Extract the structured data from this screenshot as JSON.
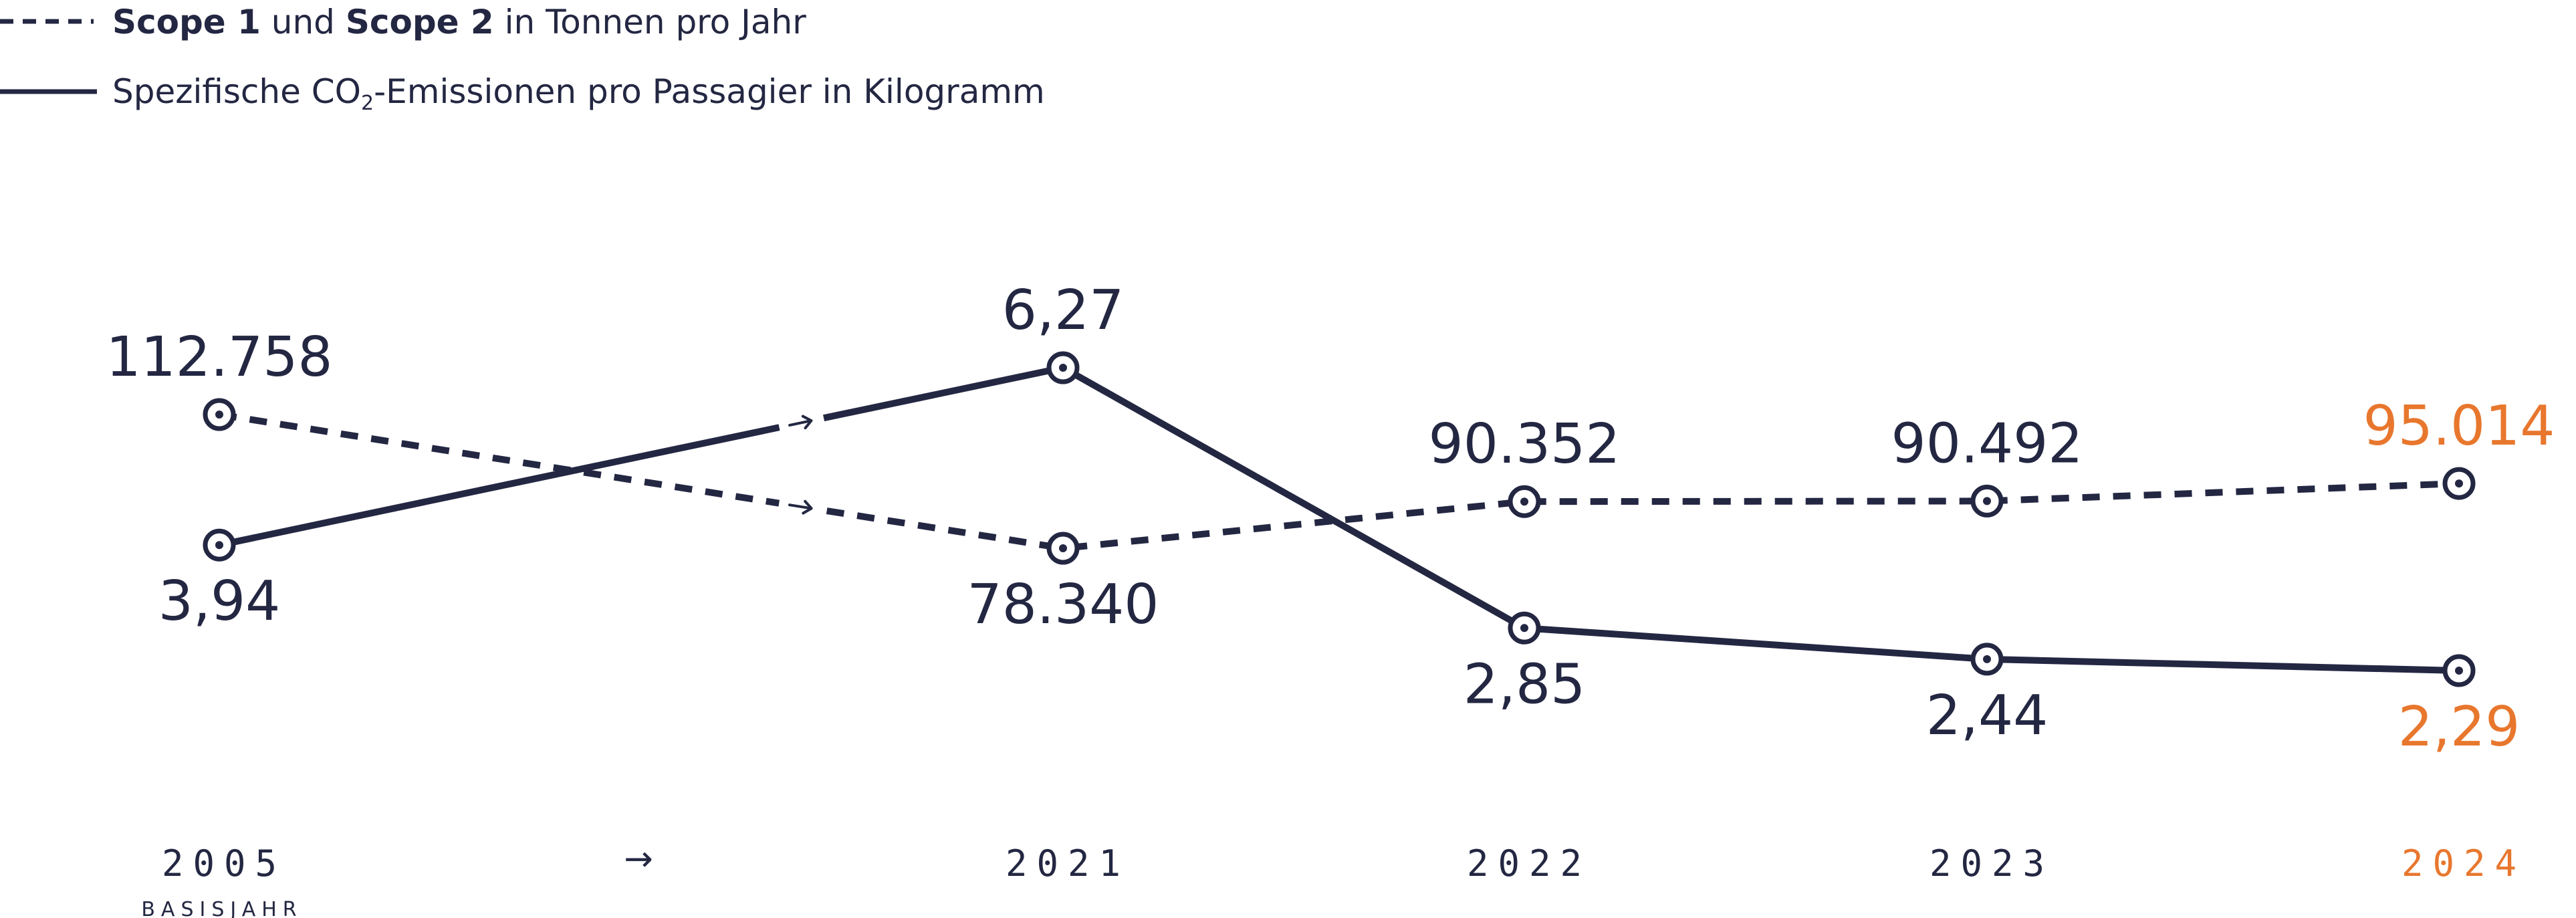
{
  "colors": {
    "ink": "#232742",
    "highlight": "#e8772e",
    "background": "#ffffff"
  },
  "legend": {
    "scope_line": {
      "bold1": "Scope 1",
      "mid": " und ",
      "bold2": "Scope 2",
      "rest": " in Tonnen pro Jahr"
    },
    "specific_line": {
      "pre": "Spezifische CO",
      "sub": "2",
      "post": "-Emissionen pro Passagier in Kilogramm"
    }
  },
  "axis": {
    "arrow": "→",
    "base_sub": "BASISJAHR"
  },
  "chart_data": {
    "type": "line",
    "categories": [
      "2005",
      "→",
      "2021",
      "2022",
      "2023",
      "2024"
    ],
    "highlight_category": "2024",
    "series": [
      {
        "key": "scope",
        "style": "dashed",
        "points": [
          {
            "x": "2005",
            "value": 112758,
            "label": "112.758"
          },
          {
            "x": "2021",
            "value": 78340,
            "label": "78.340"
          },
          {
            "x": "2022",
            "value": 90352,
            "label": "90.352"
          },
          {
            "x": "2023",
            "value": 90492,
            "label": "90.492"
          },
          {
            "x": "2024",
            "value": 95014,
            "label": "95.014"
          }
        ]
      },
      {
        "key": "specific",
        "style": "solid",
        "points": [
          {
            "x": "2005",
            "value": 3.94,
            "label": "3,94"
          },
          {
            "x": "2021",
            "value": 6.27,
            "label": "6,27"
          },
          {
            "x": "2022",
            "value": 2.85,
            "label": "2,85"
          },
          {
            "x": "2023",
            "value": 2.44,
            "label": "2,44"
          },
          {
            "x": "2024",
            "value": 2.29,
            "label": "2,29"
          }
        ]
      }
    ]
  }
}
